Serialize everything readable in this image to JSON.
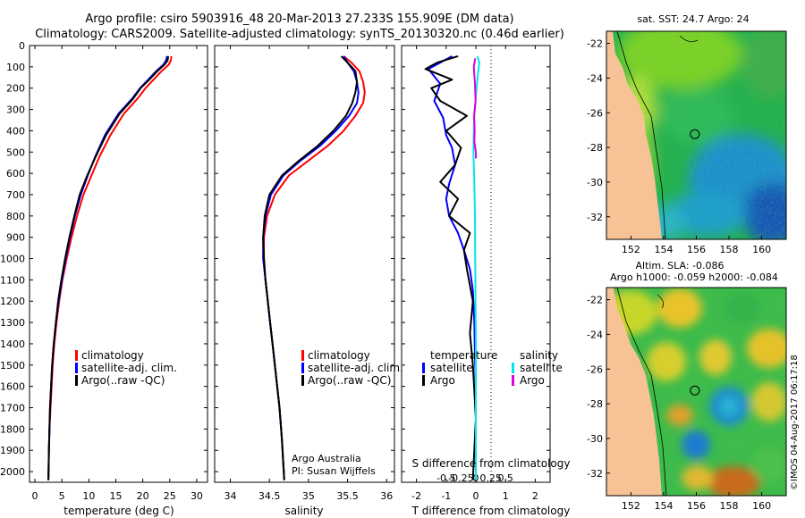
{
  "title_line1": "Argo profile: csiro 5903916_48 20-Mar-2013 27.233S 155.909E (DM data)",
  "title_line2": "Climatology: CARS2009. Satellite-adjusted climatology: synTS_20130320.nc (0.46d earlier)",
  "credit": "©IMOS 04-Aug-2017 06:17:18",
  "colors": {
    "climatology": "#ff0000",
    "satellite": "#0000ff",
    "argo": "#000000",
    "sal_satellite": "#00e5ee",
    "sal_argo": "#e000e0",
    "land": "#f7c295"
  },
  "chart_data": [
    {
      "type": "line",
      "name": "temperature-profile",
      "xlabel": "temperature (deg C)",
      "ylabel": "",
      "xlim": [
        -1,
        32
      ],
      "ylim": [
        2050,
        0
      ],
      "xticks": [
        "0",
        "5",
        "10",
        "15",
        "20",
        "25",
        "30"
      ],
      "xtick_values": [
        0,
        5,
        10,
        15,
        20,
        25,
        30
      ],
      "yticks": [
        "0",
        "100",
        "200",
        "300",
        "400",
        "500",
        "600",
        "700",
        "800",
        "900",
        "1000",
        "1100",
        "1200",
        "1300",
        "1400",
        "1500",
        "1600",
        "1700",
        "1800",
        "1900",
        "2000"
      ],
      "ytick_values": [
        0,
        100,
        200,
        300,
        400,
        500,
        600,
        700,
        800,
        900,
        1000,
        1100,
        1200,
        1300,
        1400,
        1500,
        1600,
        1700,
        1800,
        1900,
        2000
      ],
      "legend": [
        "climatology",
        "satellite-adj. clim.",
        "Argo(..raw -QC)"
      ],
      "series": [
        {
          "name": "climatology",
          "color": "#ff0000",
          "x": [
            25.3,
            25.2,
            24.8,
            23.5,
            22.0,
            20.5,
            19.0,
            16.5,
            14.0,
            12.0,
            10.5,
            9.0,
            7.8,
            6.8,
            5.9,
            5.1,
            4.5,
            4.0,
            3.6,
            3.3,
            3.1,
            2.9,
            2.7,
            2.6,
            2.5
          ],
          "y": [
            50,
            70,
            90,
            120,
            160,
            200,
            250,
            320,
            420,
            520,
            610,
            700,
            800,
            900,
            1000,
            1100,
            1200,
            1300,
            1400,
            1500,
            1600,
            1700,
            1800,
            1900,
            2040
          ]
        },
        {
          "name": "satellite-adj. clim.",
          "color": "#0000ff",
          "x": [
            24.5,
            24.3,
            23.8,
            22.5,
            21.0,
            19.5,
            18.0,
            15.5,
            13.0,
            11.2,
            9.8,
            8.5,
            7.4,
            6.5,
            5.7,
            5.0,
            4.4,
            3.9,
            3.5,
            3.2,
            3.0,
            2.8,
            2.7,
            2.6,
            2.5
          ],
          "y": [
            50,
            70,
            90,
            120,
            160,
            200,
            250,
            320,
            420,
            520,
            610,
            700,
            800,
            900,
            1000,
            1100,
            1200,
            1300,
            1400,
            1500,
            1600,
            1700,
            1800,
            1900,
            2040
          ]
        },
        {
          "name": "Argo(..raw -QC)",
          "color": "#000000",
          "x": [
            24.7,
            24.6,
            24.0,
            22.7,
            21.2,
            19.6,
            18.2,
            15.7,
            13.2,
            11.3,
            9.7,
            8.3,
            7.3,
            6.4,
            5.6,
            4.9,
            4.3,
            3.9,
            3.5,
            3.2,
            3.0,
            2.8,
            2.7,
            2.6,
            2.5
          ],
          "y": [
            50,
            70,
            90,
            120,
            160,
            200,
            250,
            320,
            420,
            520,
            610,
            700,
            800,
            900,
            1000,
            1100,
            1200,
            1300,
            1400,
            1500,
            1600,
            1700,
            1800,
            1900,
            2040
          ]
        }
      ]
    },
    {
      "type": "line",
      "name": "salinity-profile",
      "xlabel": "salinity",
      "xlim": [
        33.8,
        36.1
      ],
      "ylim": [
        2050,
        0
      ],
      "xticks": [
        "34",
        "34.5",
        "35",
        "35.5",
        "36"
      ],
      "xtick_values": [
        34,
        34.5,
        35,
        35.5,
        36
      ],
      "legend": [
        "climatology",
        "satellite-adj. clim.",
        "Argo(..raw -QC)"
      ],
      "annotation": [
        "Argo Australia",
        "PI: Susan Wijffels"
      ],
      "series": [
        {
          "name": "climatology",
          "color": "#ff0000",
          "x": [
            35.45,
            35.55,
            35.65,
            35.7,
            35.72,
            35.7,
            35.6,
            35.45,
            35.25,
            35.0,
            34.75,
            34.57,
            34.47,
            34.43,
            34.43,
            34.45,
            34.48,
            34.51,
            34.54,
            34.57,
            34.6,
            34.63,
            34.66,
            34.69
          ],
          "y": [
            50,
            80,
            120,
            170,
            220,
            270,
            330,
            400,
            470,
            540,
            610,
            700,
            800,
            900,
            1000,
            1100,
            1200,
            1300,
            1400,
            1500,
            1600,
            1700,
            1850,
            2040
          ]
        },
        {
          "name": "satellite-adj. clim.",
          "color": "#0000ff",
          "x": [
            35.45,
            35.5,
            35.58,
            35.62,
            35.64,
            35.62,
            35.52,
            35.35,
            35.15,
            34.9,
            34.68,
            34.52,
            34.45,
            34.42,
            34.42,
            34.45,
            34.48,
            34.51,
            34.54,
            34.57,
            34.6,
            34.63,
            34.66,
            34.69
          ],
          "y": [
            50,
            80,
            120,
            170,
            220,
            270,
            330,
            400,
            470,
            540,
            610,
            700,
            800,
            900,
            1000,
            1100,
            1200,
            1300,
            1400,
            1500,
            1600,
            1700,
            1850,
            2040
          ]
        },
        {
          "name": "Argo(..raw -QC)",
          "color": "#000000",
          "x": [
            35.42,
            35.5,
            35.6,
            35.62,
            35.6,
            35.56,
            35.48,
            35.32,
            35.12,
            34.88,
            34.66,
            34.5,
            34.44,
            34.42,
            34.43,
            34.45,
            34.48,
            34.51,
            34.54,
            34.57,
            34.6,
            34.63,
            34.66,
            34.69
          ],
          "y": [
            50,
            80,
            120,
            170,
            220,
            270,
            330,
            400,
            470,
            540,
            610,
            700,
            800,
            900,
            1000,
            1100,
            1200,
            1300,
            1400,
            1500,
            1600,
            1700,
            1850,
            2040
          ]
        }
      ]
    },
    {
      "type": "line",
      "name": "difference-profile",
      "xlabel": "T difference from climatology",
      "top_xlabel": "S difference from climatology",
      "xlim": [
        -2.5,
        2.5
      ],
      "ylim": [
        2050,
        0
      ],
      "xticks": [
        "-2",
        "-1",
        "0",
        "1",
        "2"
      ],
      "xtick_values": [
        -2,
        -1,
        0,
        1,
        2
      ],
      "sticks": [
        "-0.5",
        "-0.25",
        "0",
        "0.25",
        "0.5"
      ],
      "stick_values": [
        -0.5,
        -0.25,
        0,
        0.25,
        0.5
      ],
      "legend_left": [
        "temperature",
        "satellite",
        "Argo"
      ],
      "legend_right": [
        "salinity",
        "satellite",
        "Argo"
      ],
      "series": [
        {
          "name": "T satellite",
          "color": "#0000ff",
          "x": [
            -0.8,
            -1.2,
            -1.6,
            -1.2,
            -1.4,
            -1.1,
            -1.0,
            -0.8,
            -0.7,
            -0.9,
            -1.0,
            -0.9,
            -0.6,
            -0.4,
            -0.2,
            -0.1,
            -0.05,
            -0.03,
            0,
            0,
            0
          ],
          "y": [
            50,
            80,
            110,
            180,
            260,
            340,
            420,
            480,
            560,
            650,
            720,
            800,
            880,
            960,
            1050,
            1150,
            1300,
            1450,
            1600,
            1800,
            2040
          ]
        },
        {
          "name": "T Argo",
          "color": "#000000",
          "x": [
            -0.6,
            -1.3,
            -1.7,
            -0.8,
            -1.5,
            -1.2,
            -0.3,
            -1.0,
            -0.5,
            -0.7,
            -1.2,
            -0.6,
            -0.9,
            -0.2,
            -0.4,
            -0.3,
            -0.1,
            -0.2,
            -0.1,
            0,
            -0.1
          ],
          "y": [
            50,
            80,
            110,
            160,
            200,
            260,
            330,
            400,
            480,
            560,
            640,
            720,
            800,
            880,
            960,
            1050,
            1200,
            1350,
            1500,
            1750,
            2040
          ]
        },
        {
          "name": "S satellite",
          "color": "#00e5ee",
          "x": [
            0.05,
            0.12,
            0.08,
            0.02,
            -0.06,
            -0.08,
            -0.05,
            -0.03,
            -0.02,
            0,
            0
          ],
          "y": [
            50,
            80,
            120,
            200,
            350,
            500,
            650,
            800,
            1000,
            1400,
            2040
          ]
        },
        {
          "name": "S Argo",
          "color": "#e000e0",
          "x": [
            -0.02,
            -0.07,
            -0.03,
            -0.01,
            -0.06,
            -0.04,
            -0.05,
            0,
            0
          ],
          "y": [
            60,
            100,
            180,
            260,
            330,
            400,
            450,
            500,
            530
          ]
        }
      ]
    },
    {
      "type": "heatmap",
      "name": "sst-map",
      "title": "sat. SST: 24.7  Argo: 24",
      "xticks": [
        "152",
        "154",
        "156",
        "158",
        "160"
      ],
      "xtick_values": [
        152,
        154,
        156,
        158,
        160
      ],
      "yticks": [
        "-22",
        "-24",
        "-26",
        "-28",
        "-30",
        "-32"
      ],
      "ytick_values": [
        -22,
        -24,
        -26,
        -28,
        -30,
        -32
      ],
      "xlim": [
        150.5,
        161.5
      ],
      "ylim": [
        -33.3,
        -21.3
      ],
      "float_position": [
        155.909,
        -27.233
      ]
    },
    {
      "type": "heatmap",
      "name": "sla-map",
      "title_line1": "Altim. SLA: -0.086",
      "title_line2": "Argo h1000: -0.059 h2000: -0.084",
      "xticks": [
        "152",
        "154",
        "156",
        "158",
        "160"
      ],
      "xtick_values": [
        152,
        154,
        156,
        158,
        160
      ],
      "yticks": [
        "-22",
        "-24",
        "-26",
        "-28",
        "-30",
        "-32"
      ],
      "ytick_values": [
        -22,
        -24,
        -26,
        -28,
        -30,
        -32
      ],
      "xlim": [
        150.5,
        161.5
      ],
      "ylim": [
        -33.3,
        -21.3
      ],
      "float_position": [
        155.909,
        -27.233
      ]
    }
  ]
}
